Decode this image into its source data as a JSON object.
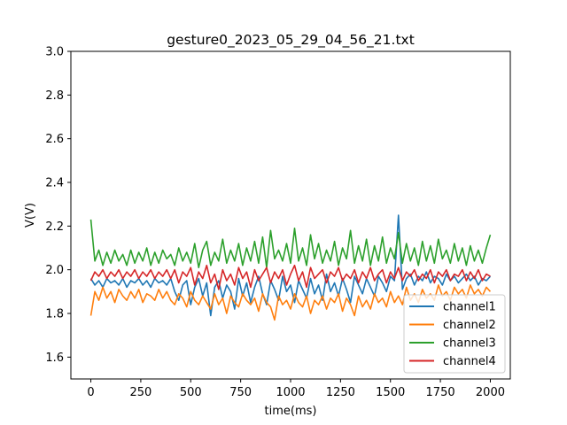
{
  "chart_data": {
    "type": "line",
    "title": "gesture0_2023_05_29_04_56_21.txt",
    "xlabel": "time(ms)",
    "ylabel": "V(V)",
    "xlim": [
      -100,
      2100
    ],
    "ylim": [
      1.5,
      3.0
    ],
    "xticks": [
      0,
      250,
      500,
      750,
      1000,
      1250,
      1500,
      1750,
      2000
    ],
    "xtick_labels": [
      "0",
      "250",
      "500",
      "750",
      "1000",
      "1250",
      "1500",
      "1750",
      "2000"
    ],
    "yticks": [
      1.6,
      1.8,
      2.0,
      2.2,
      2.4,
      2.6,
      2.8,
      3.0
    ],
    "ytick_labels": [
      "1.6",
      "1.8",
      "2.0",
      "2.2",
      "2.4",
      "2.6",
      "2.8",
      "3.0"
    ],
    "grid": false,
    "legend_position": "lower-right",
    "x": [
      0,
      20,
      40,
      60,
      80,
      100,
      120,
      140,
      160,
      180,
      200,
      220,
      240,
      260,
      280,
      300,
      320,
      340,
      360,
      380,
      400,
      420,
      440,
      460,
      480,
      500,
      520,
      540,
      560,
      580,
      600,
      620,
      640,
      660,
      680,
      700,
      720,
      740,
      760,
      780,
      800,
      820,
      840,
      860,
      880,
      900,
      920,
      940,
      960,
      980,
      1000,
      1020,
      1040,
      1060,
      1080,
      1100,
      1120,
      1140,
      1160,
      1180,
      1200,
      1220,
      1240,
      1260,
      1280,
      1300,
      1320,
      1340,
      1360,
      1380,
      1400,
      1420,
      1440,
      1460,
      1480,
      1500,
      1520,
      1540,
      1560,
      1580,
      1600,
      1620,
      1640,
      1660,
      1680,
      1700,
      1720,
      1740,
      1760,
      1780,
      1800,
      1820,
      1840,
      1860,
      1880,
      1900,
      1920,
      1940,
      1960,
      1980,
      2000
    ],
    "series": [
      {
        "name": "channel1",
        "color": "#1f77b4",
        "values": [
          1.96,
          1.93,
          1.95,
          1.92,
          1.96,
          1.94,
          1.95,
          1.93,
          1.96,
          1.92,
          1.95,
          1.94,
          1.96,
          1.93,
          1.95,
          1.92,
          1.96,
          1.94,
          1.95,
          1.93,
          1.96,
          1.9,
          1.86,
          1.93,
          1.95,
          1.84,
          1.92,
          1.96,
          1.88,
          1.94,
          1.79,
          1.92,
          1.95,
          1.87,
          1.93,
          1.9,
          1.82,
          1.96,
          1.88,
          1.94,
          1.85,
          1.92,
          1.97,
          1.89,
          1.84,
          1.95,
          1.91,
          1.86,
          1.97,
          1.9,
          1.93,
          1.85,
          1.95,
          1.91,
          1.87,
          1.96,
          1.89,
          1.93,
          1.86,
          1.98,
          1.9,
          1.94,
          1.88,
          1.96,
          1.91,
          1.85,
          1.97,
          1.93,
          1.89,
          1.96,
          1.92,
          1.88,
          1.97,
          1.94,
          1.9,
          1.97,
          1.95,
          2.25,
          1.91,
          1.96,
          1.98,
          1.93,
          1.97,
          1.95,
          1.99,
          1.94,
          1.97,
          1.96,
          1.93,
          1.98,
          1.95,
          1.97,
          1.94,
          1.96,
          1.98,
          1.95,
          1.97,
          1.93,
          1.96,
          1.95,
          1.97
        ]
      },
      {
        "name": "channel2",
        "color": "#ff7f0e",
        "values": [
          1.79,
          1.9,
          1.86,
          1.92,
          1.87,
          1.9,
          1.85,
          1.91,
          1.88,
          1.86,
          1.9,
          1.87,
          1.91,
          1.85,
          1.89,
          1.88,
          1.86,
          1.91,
          1.87,
          1.9,
          1.86,
          1.84,
          1.89,
          1.87,
          1.83,
          1.9,
          1.86,
          1.84,
          1.88,
          1.85,
          1.82,
          1.89,
          1.84,
          1.87,
          1.8,
          1.88,
          1.85,
          1.83,
          1.89,
          1.86,
          1.84,
          1.87,
          1.81,
          1.89,
          1.85,
          1.83,
          1.77,
          1.88,
          1.84,
          1.86,
          1.82,
          1.89,
          1.85,
          1.83,
          1.88,
          1.8,
          1.86,
          1.84,
          1.88,
          1.82,
          1.87,
          1.85,
          1.89,
          1.81,
          1.87,
          1.84,
          1.79,
          1.88,
          1.83,
          1.86,
          1.82,
          1.89,
          1.85,
          1.87,
          1.83,
          1.9,
          1.85,
          1.88,
          1.84,
          1.92,
          1.86,
          1.89,
          1.85,
          1.91,
          1.87,
          1.89,
          1.86,
          1.93,
          1.88,
          1.9,
          1.86,
          1.92,
          1.89,
          1.91,
          1.87,
          1.93,
          1.89,
          1.91,
          1.88,
          1.92,
          1.9
        ]
      },
      {
        "name": "channel3",
        "color": "#2ca02c",
        "values": [
          2.23,
          2.04,
          2.09,
          2.02,
          2.08,
          2.03,
          2.09,
          2.04,
          2.07,
          2.02,
          2.09,
          2.03,
          2.08,
          2.04,
          2.1,
          2.02,
          2.08,
          2.03,
          2.09,
          2.05,
          2.07,
          2.02,
          2.1,
          2.04,
          2.08,
          2.03,
          2.12,
          2.01,
          2.09,
          2.13,
          2.02,
          2.08,
          2.04,
          2.14,
          2.03,
          2.09,
          2.04,
          2.12,
          2.02,
          2.1,
          2.04,
          2.13,
          2.03,
          2.15,
          2.01,
          2.18,
          2.05,
          2.09,
          2.04,
          2.12,
          2.03,
          2.19,
          2.04,
          2.1,
          2.02,
          2.16,
          2.05,
          2.12,
          2.03,
          2.09,
          2.04,
          2.13,
          2.02,
          2.1,
          2.05,
          2.18,
          2.03,
          2.11,
          2.04,
          2.14,
          2.02,
          2.11,
          2.04,
          2.15,
          2.03,
          2.1,
          2.05,
          2.17,
          2.03,
          2.12,
          2.04,
          2.1,
          2.02,
          2.13,
          2.04,
          2.11,
          2.03,
          2.14,
          2.05,
          2.09,
          2.03,
          2.12,
          2.04,
          2.1,
          2.02,
          2.11,
          2.04,
          2.09,
          2.03,
          2.1,
          2.16
        ]
      },
      {
        "name": "channel4",
        "color": "#d62728",
        "values": [
          1.95,
          1.99,
          1.97,
          2.0,
          1.96,
          1.99,
          1.97,
          2.0,
          1.96,
          1.99,
          1.97,
          2.0,
          1.96,
          1.99,
          1.97,
          2.0,
          1.96,
          1.99,
          1.97,
          2.0,
          1.96,
          2.0,
          1.94,
          1.99,
          1.97,
          2.01,
          1.93,
          1.99,
          1.96,
          2.02,
          1.94,
          1.98,
          1.91,
          2.0,
          1.95,
          1.98,
          1.93,
          2.01,
          1.96,
          1.99,
          1.92,
          2.0,
          1.95,
          1.98,
          2.01,
          1.94,
          1.99,
          1.96,
          2.0,
          1.93,
          1.98,
          2.02,
          1.95,
          1.99,
          1.92,
          2.01,
          1.96,
          1.98,
          2.0,
          1.94,
          1.99,
          1.97,
          2.01,
          1.95,
          1.98,
          1.96,
          2.0,
          1.94,
          1.99,
          1.96,
          2.01,
          1.95,
          1.98,
          2.0,
          1.94,
          1.99,
          1.96,
          2.01,
          1.95,
          1.99,
          1.97,
          2.0,
          1.95,
          1.98,
          1.96,
          2.0,
          1.94,
          1.99,
          1.97,
          2.0,
          1.95,
          1.98,
          1.97,
          2.0,
          1.95,
          1.99,
          1.96,
          2.0,
          1.95,
          1.98,
          1.97
        ]
      }
    ]
  }
}
